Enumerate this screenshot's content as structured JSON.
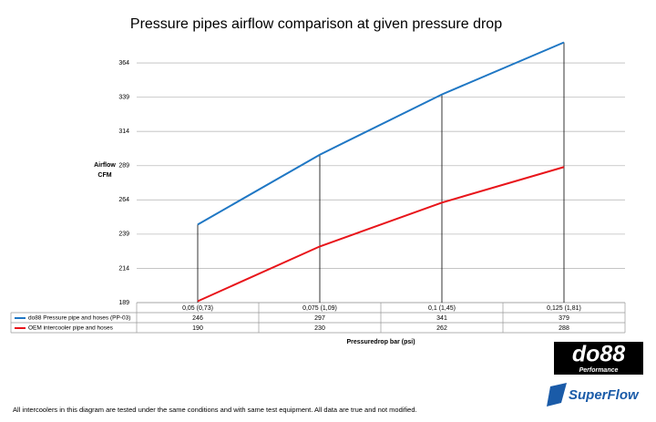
{
  "chart_data": {
    "type": "line",
    "title": "Pressure pipes airflow comparison at given pressure drop",
    "ylabel": [
      "Airflow",
      "CFM"
    ],
    "xlabel": "Pressuredrop bar (psi)",
    "categories": [
      "0,05 (0,73)",
      "0,075 (1,09)",
      "0,1 (1,45)",
      "0,125 (1,81)"
    ],
    "series": [
      {
        "name": "do88 Pressure pipe and hoses (PP-03)",
        "color": "#1f77c4",
        "values": [
          246,
          297,
          341,
          379
        ]
      },
      {
        "name": "OEM intercooler pipe and hoses",
        "color": "#e8141a",
        "values": [
          190,
          230,
          262,
          288
        ]
      }
    ],
    "ylim": [
      189,
      380
    ],
    "yticks": [
      189,
      214,
      239,
      264,
      289,
      314,
      339,
      364
    ],
    "grid": true,
    "drop_lines": true
  },
  "footnote": "All intercoolers in this diagram are tested under the same conditions and with same test equipment. All data are true and not modified.",
  "logos": {
    "do88": "do88",
    "do88_sub": "Performance",
    "superflow": "SuperFlow"
  }
}
